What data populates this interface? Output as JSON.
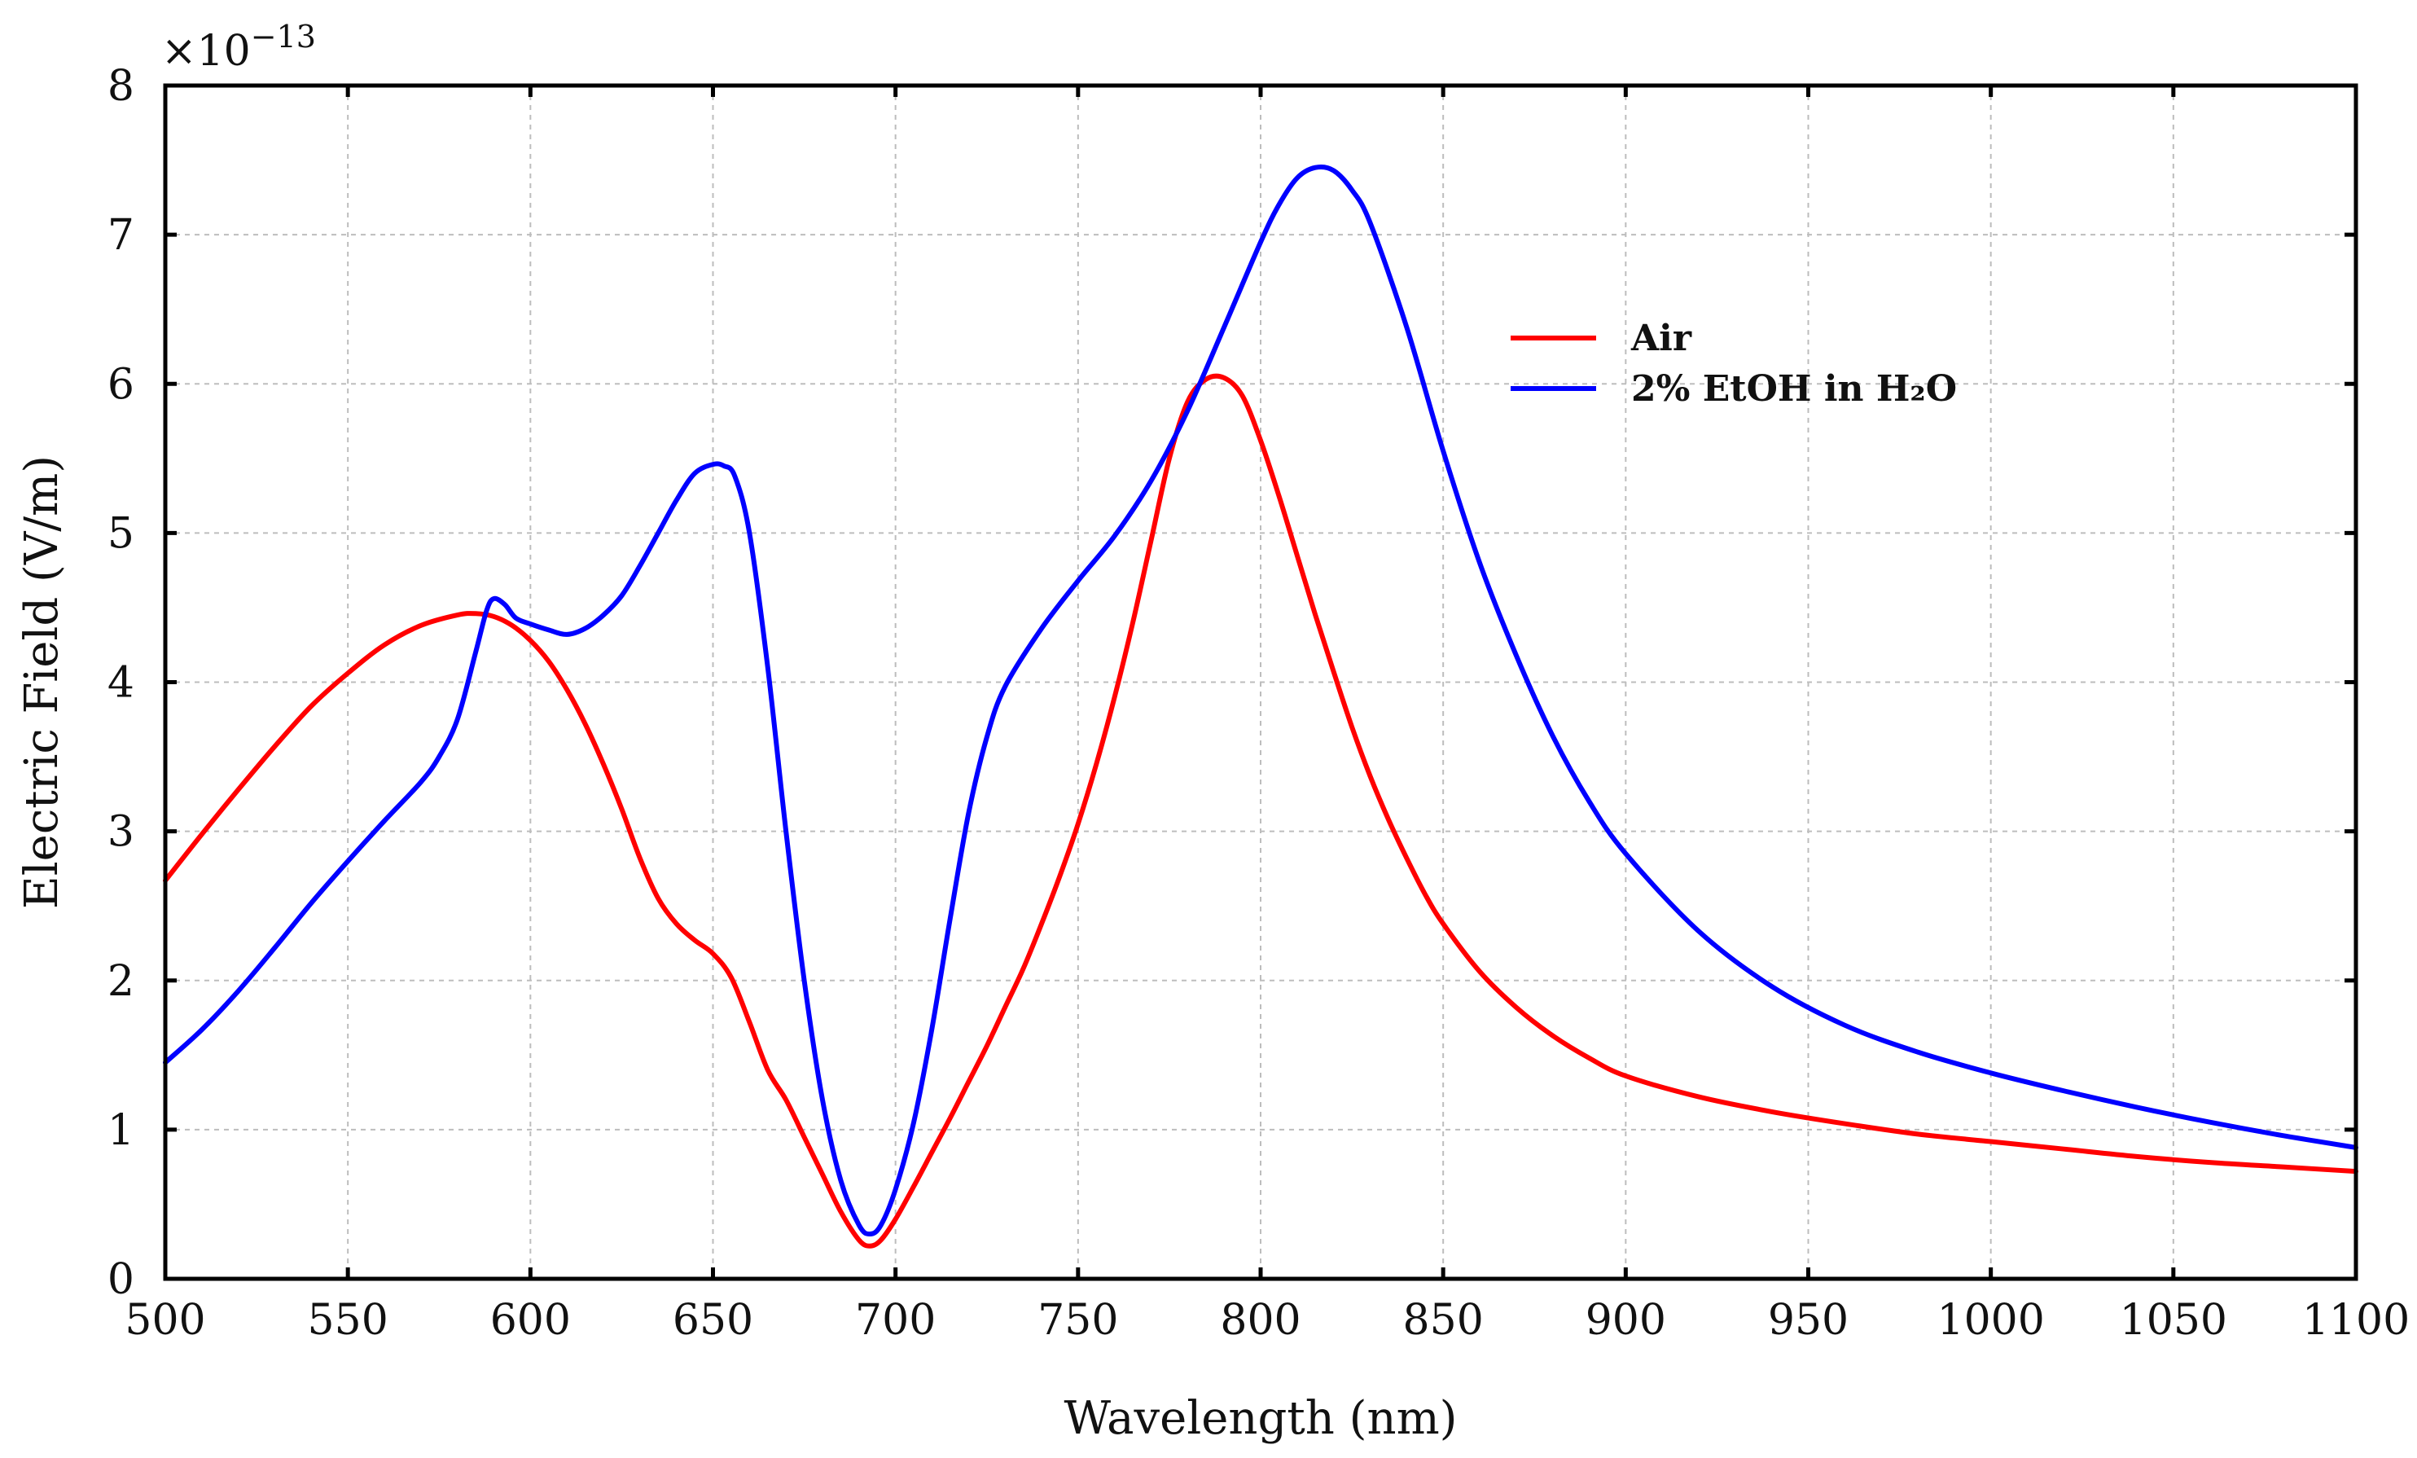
{
  "chart_data": {
    "type": "line",
    "title": "",
    "xlabel": "Wavelength (nm)",
    "ylabel": "Electric Field (V/m)",
    "y_multiplier": {
      "base": "×10",
      "exponent": "−13"
    },
    "xlim": [
      500,
      1100
    ],
    "ylim": [
      0,
      8
    ],
    "x_ticks": [
      500,
      550,
      600,
      650,
      700,
      750,
      800,
      850,
      900,
      950,
      1000,
      1050,
      1100
    ],
    "y_ticks": [
      0,
      1,
      2,
      3,
      4,
      5,
      6,
      7,
      8
    ],
    "grid": true,
    "legend_position": "top-right",
    "series": [
      {
        "name": "Air",
        "color": "#ff0000",
        "x": [
          500,
          510,
          520,
          530,
          540,
          550,
          560,
          570,
          580,
          585,
          590,
          595,
          600,
          605,
          610,
          615,
          620,
          625,
          630,
          635,
          640,
          645,
          650,
          655,
          660,
          665,
          670,
          675,
          680,
          685,
          690,
          693,
          696,
          700,
          705,
          710,
          715,
          720,
          725,
          730,
          735,
          740,
          745,
          750,
          755,
          760,
          765,
          770,
          775,
          780,
          785,
          790,
          795,
          800,
          805,
          810,
          815,
          820,
          825,
          830,
          835,
          840,
          845,
          850,
          860,
          870,
          880,
          890,
          900,
          920,
          940,
          960,
          980,
          1000,
          1020,
          1040,
          1060,
          1080,
          1100
        ],
        "values": [
          2.67,
          2.98,
          3.28,
          3.57,
          3.84,
          4.06,
          4.25,
          4.38,
          4.45,
          4.46,
          4.44,
          4.38,
          4.28,
          4.14,
          3.95,
          3.72,
          3.45,
          3.15,
          2.82,
          2.55,
          2.38,
          2.27,
          2.18,
          2.02,
          1.72,
          1.4,
          1.2,
          0.95,
          0.7,
          0.45,
          0.26,
          0.22,
          0.26,
          0.4,
          0.62,
          0.85,
          1.08,
          1.32,
          1.56,
          1.82,
          2.08,
          2.38,
          2.7,
          3.05,
          3.45,
          3.9,
          4.4,
          4.95,
          5.5,
          5.88,
          6.03,
          6.04,
          5.92,
          5.62,
          5.25,
          4.85,
          4.45,
          4.07,
          3.7,
          3.37,
          3.08,
          2.82,
          2.58,
          2.38,
          2.06,
          1.82,
          1.63,
          1.48,
          1.36,
          1.22,
          1.12,
          1.04,
          0.97,
          0.92,
          0.87,
          0.82,
          0.78,
          0.75,
          0.72
        ]
      },
      {
        "name": "2% EtOH in H₂O",
        "color": "#0000ff",
        "x": [
          500,
          510,
          520,
          530,
          540,
          550,
          560,
          570,
          575,
          580,
          585,
          588,
          590,
          593,
          596,
          600,
          605,
          610,
          615,
          620,
          625,
          630,
          635,
          640,
          645,
          650,
          653,
          656,
          660,
          665,
          670,
          675,
          680,
          685,
          690,
          693,
          696,
          700,
          705,
          710,
          715,
          720,
          725,
          730,
          740,
          750,
          760,
          770,
          780,
          790,
          800,
          805,
          810,
          815,
          820,
          825,
          830,
          840,
          850,
          860,
          870,
          880,
          890,
          900,
          920,
          940,
          960,
          980,
          1000,
          1020,
          1040,
          1060,
          1080,
          1100
        ],
        "values": [
          1.45,
          1.67,
          1.93,
          2.22,
          2.52,
          2.8,
          3.07,
          3.33,
          3.5,
          3.75,
          4.2,
          4.48,
          4.56,
          4.52,
          4.43,
          4.39,
          4.35,
          4.32,
          4.36,
          4.45,
          4.58,
          4.78,
          5.0,
          5.22,
          5.4,
          5.46,
          5.45,
          5.38,
          5.0,
          4.1,
          3.0,
          2.0,
          1.2,
          0.66,
          0.36,
          0.3,
          0.36,
          0.6,
          1.05,
          1.68,
          2.42,
          3.12,
          3.63,
          3.97,
          4.36,
          4.68,
          4.98,
          5.35,
          5.82,
          6.38,
          6.95,
          7.2,
          7.38,
          7.45,
          7.43,
          7.3,
          7.08,
          6.38,
          5.55,
          4.8,
          4.18,
          3.64,
          3.2,
          2.85,
          2.33,
          1.96,
          1.7,
          1.52,
          1.38,
          1.26,
          1.15,
          1.05,
          0.96,
          0.88
        ]
      }
    ]
  }
}
